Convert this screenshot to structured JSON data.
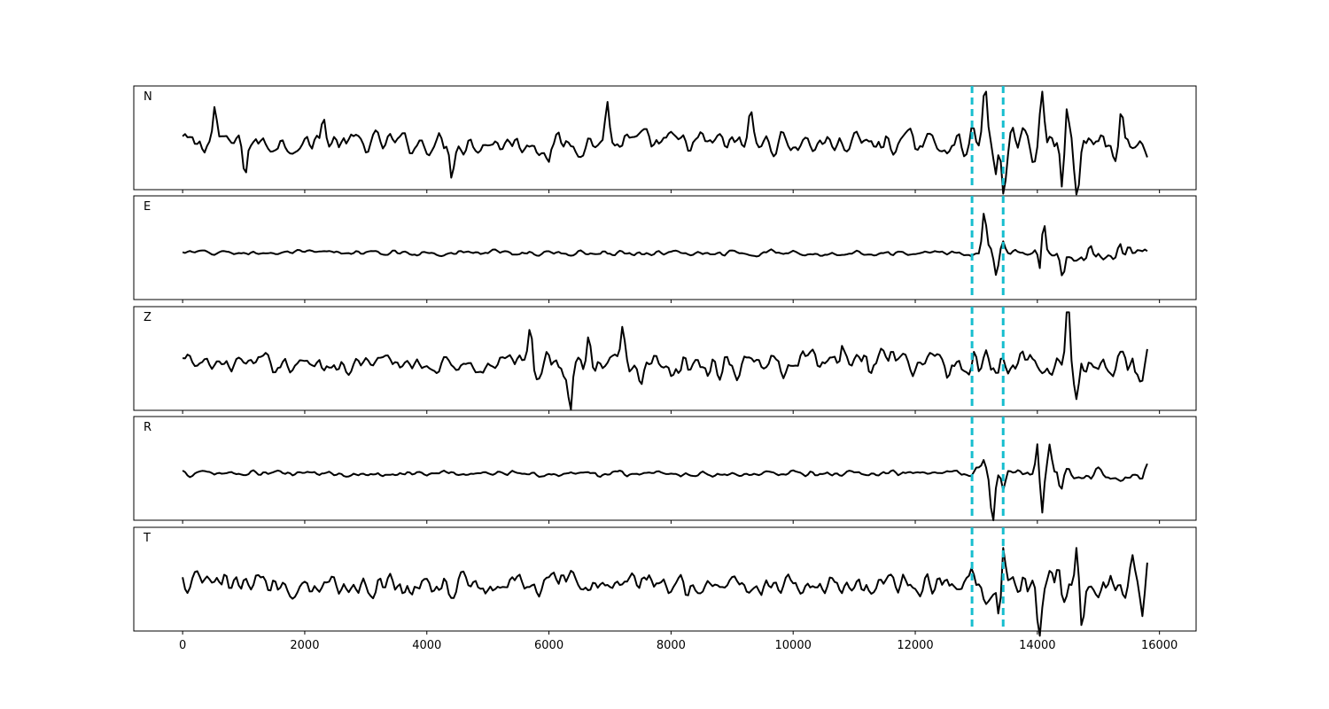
{
  "chart_data": {
    "type": "line",
    "title": "",
    "xlabel": "",
    "ylabel": "",
    "xlim": [
      -800,
      16600
    ],
    "x_ticks": [
      0,
      2000,
      4000,
      6000,
      8000,
      10000,
      12000,
      14000,
      16000
    ],
    "x_tick_labels": [
      "0",
      "2000",
      "4000",
      "6000",
      "8000",
      "10000",
      "12000",
      "14000",
      "16000"
    ],
    "n_samples": 15800,
    "picks": [
      12930,
      13440
    ],
    "pick_color": "#17becf",
    "trace_color": "#000000",
    "panels": [
      {
        "component": "N",
        "features": [
          {
            "x": 530,
            "y": 0.7
          },
          {
            "x": 1030,
            "y": -0.5
          },
          {
            "x": 2300,
            "y": 0.6
          },
          {
            "x": 4400,
            "y": -0.55
          },
          {
            "x": 6000,
            "y": -0.5
          },
          {
            "x": 6950,
            "y": 0.8
          },
          {
            "x": 9300,
            "y": 0.6
          },
          {
            "x": 13150,
            "y": 1.0
          },
          {
            "x": 13320,
            "y": -0.7
          },
          {
            "x": 13440,
            "y": -0.9
          },
          {
            "x": 14080,
            "y": 1.0
          },
          {
            "x": 14400,
            "y": -0.9
          },
          {
            "x": 14480,
            "y": 1.0
          },
          {
            "x": 14640,
            "y": -0.9
          },
          {
            "x": 15380,
            "y": 0.7
          },
          {
            "x": 15800,
            "y": -0.3
          }
        ]
      },
      {
        "component": "E",
        "features": [
          {
            "x": 13130,
            "y": 0.85
          },
          {
            "x": 13330,
            "y": -0.4
          },
          {
            "x": 13440,
            "y": 0.3
          },
          {
            "x": 14060,
            "y": -0.75
          },
          {
            "x": 14090,
            "y": 1.0
          },
          {
            "x": 14420,
            "y": -0.45
          },
          {
            "x": 15350,
            "y": 0.25
          },
          {
            "x": 15800,
            "y": -0.05
          }
        ]
      },
      {
        "component": "Z",
        "features": [
          {
            "x": 5700,
            "y": 0.65
          },
          {
            "x": 6350,
            "y": -0.85
          },
          {
            "x": 6650,
            "y": 0.55
          },
          {
            "x": 7200,
            "y": 0.75
          },
          {
            "x": 7500,
            "y": -0.5
          },
          {
            "x": 10800,
            "y": 0.55
          },
          {
            "x": 13390,
            "y": 0.3
          },
          {
            "x": 14500,
            "y": 1.0
          },
          {
            "x": 14650,
            "y": -0.45
          },
          {
            "x": 15600,
            "y": -0.5
          },
          {
            "x": 15800,
            "y": 0.2
          }
        ]
      },
      {
        "component": "R",
        "features": [
          {
            "x": 13120,
            "y": 0.2
          },
          {
            "x": 13270,
            "y": -1.0
          },
          {
            "x": 13440,
            "y": -0.35
          },
          {
            "x": 14020,
            "y": 0.85
          },
          {
            "x": 14060,
            "y": -1.0
          },
          {
            "x": 14200,
            "y": 0.6
          },
          {
            "x": 14380,
            "y": -0.45
          },
          {
            "x": 15800,
            "y": 0.1
          }
        ]
      },
      {
        "component": "T",
        "features": [
          {
            "x": 13440,
            "y": 1.0
          },
          {
            "x": 13380,
            "y": -0.9
          },
          {
            "x": 13780,
            "y": 0.55
          },
          {
            "x": 14040,
            "y": -1.0
          },
          {
            "x": 14340,
            "y": 0.75
          },
          {
            "x": 14640,
            "y": 0.9
          },
          {
            "x": 14730,
            "y": -0.85
          },
          {
            "x": 15560,
            "y": 0.55
          },
          {
            "x": 15720,
            "y": -0.7
          },
          {
            "x": 15800,
            "y": 0.3
          }
        ]
      }
    ]
  }
}
